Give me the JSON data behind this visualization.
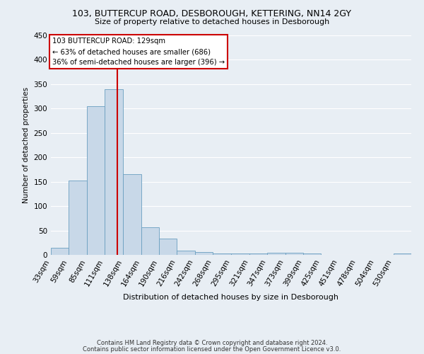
{
  "title_line1": "103, BUTTERCUP ROAD, DESBOROUGH, KETTERING, NN14 2GY",
  "title_line2": "Size of property relative to detached houses in Desborough",
  "xlabel": "Distribution of detached houses by size in Desborough",
  "ylabel": "Number of detached properties",
  "bar_color": "#c8d8e8",
  "bar_edge_color": "#6a9fc0",
  "bins": [
    33,
    59,
    85,
    111,
    138,
    164,
    190,
    216,
    242,
    268,
    295,
    321,
    347,
    373,
    399,
    425,
    451,
    478,
    504,
    530,
    556
  ],
  "heights": [
    15,
    153,
    305,
    340,
    165,
    57,
    33,
    9,
    6,
    3,
    3,
    3,
    4,
    4,
    3,
    0,
    0,
    0,
    0,
    3
  ],
  "property_size": 129,
  "vline_color": "#cc0000",
  "annotation_text": "103 BUTTERCUP ROAD: 129sqm\n← 63% of detached houses are smaller (686)\n36% of semi-detached houses are larger (396) →",
  "annotation_box_color": "white",
  "annotation_box_edge": "#cc0000",
  "footnote1": "Contains HM Land Registry data © Crown copyright and database right 2024.",
  "footnote2": "Contains public sector information licensed under the Open Government Licence v3.0.",
  "ylim": [
    0,
    450
  ],
  "background_color": "#e8eef4",
  "plot_background": "#e8eef4",
  "grid_color": "white",
  "title_fontsize": 9,
  "subtitle_fontsize": 8,
  "xlabel_fontsize": 8,
  "ylabel_fontsize": 7.5
}
